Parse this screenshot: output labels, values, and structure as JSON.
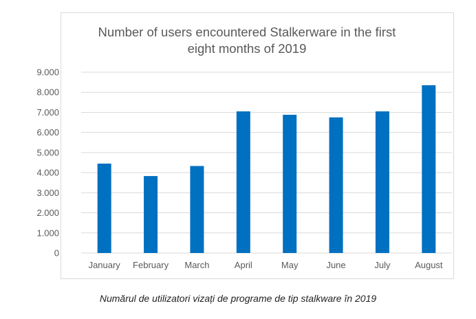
{
  "chart_data": {
    "type": "bar",
    "title_lines": [
      "Number of users encountered Stalkerware in the first",
      "eight months of 2019"
    ],
    "categories": [
      "January",
      "February",
      "March",
      "April",
      "May",
      "June",
      "July",
      "August"
    ],
    "values": [
      4450,
      3830,
      4330,
      7050,
      6880,
      6750,
      7050,
      8350
    ],
    "ylim": [
      0,
      9000
    ],
    "yticks": [
      0,
      1000,
      2000,
      3000,
      4000,
      5000,
      6000,
      7000,
      8000,
      9000
    ],
    "ytick_labels": [
      "0",
      "1.000",
      "2.000",
      "3.000",
      "4.000",
      "5.000",
      "6.000",
      "7.000",
      "8.000",
      "9.000"
    ],
    "grid": true,
    "bar_color": "#0070c0",
    "grid_color": "#d9d9d9",
    "text_color": "#595959"
  },
  "caption": "Numărul de utilizatori vizați de programe de tip stalkware în 2019"
}
